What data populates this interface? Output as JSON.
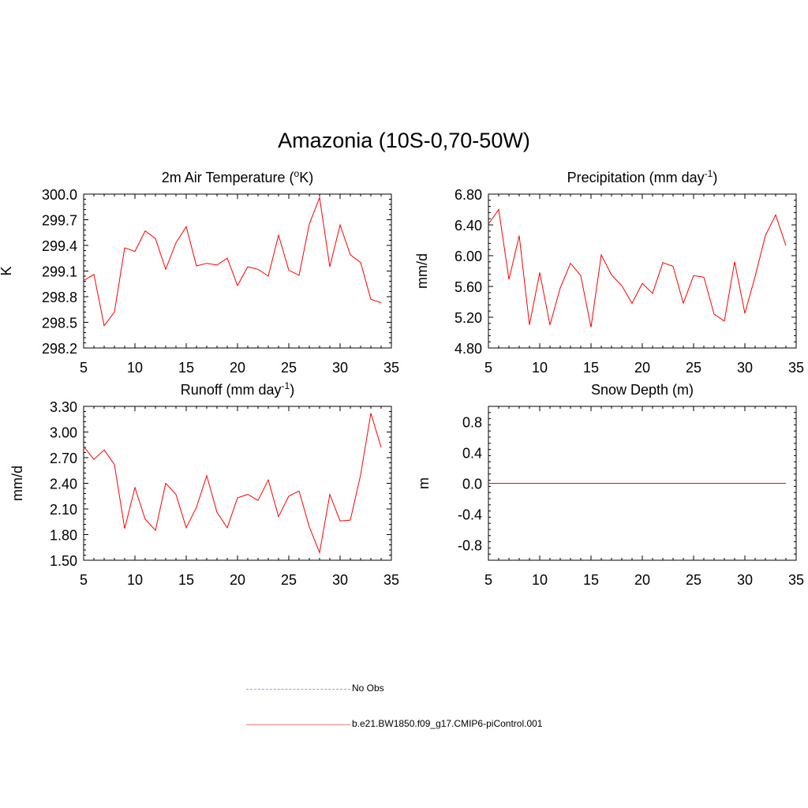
{
  "title": "Amazonia (10S-0,70-50W)",
  "colors": {
    "model": "#ff0000",
    "obs": "#9a9ae6",
    "axis": "#000000"
  },
  "legend": {
    "obs_label": "No Obs",
    "model_label": "b.e21.BW1850.f09_g17.CMIP6-piControl.001"
  },
  "chart_data": [
    {
      "id": "temp",
      "type": "line",
      "title": "2m Air Temperature (",
      "title_sup": "o",
      "title_tail": "K)",
      "ylabel": "K",
      "xlim": [
        5,
        35
      ],
      "ylim": [
        298.2,
        300.0
      ],
      "yticks": [
        "298.2",
        "298.5",
        "298.8",
        "299.1",
        "299.4",
        "299.7",
        "300.0"
      ],
      "xticks": [
        "5",
        "10",
        "15",
        "20",
        "25",
        "30",
        "35"
      ],
      "x": [
        5,
        6,
        7,
        8,
        9,
        10,
        11,
        12,
        13,
        14,
        15,
        16,
        17,
        18,
        19,
        20,
        21,
        22,
        23,
        24,
        25,
        26,
        27,
        28,
        29,
        30,
        31,
        32,
        33,
        34
      ],
      "values": [
        298.99,
        299.06,
        298.46,
        298.62,
        299.37,
        299.33,
        299.57,
        299.48,
        299.12,
        299.43,
        299.62,
        299.16,
        299.19,
        299.17,
        299.25,
        298.93,
        299.15,
        299.12,
        299.04,
        299.52,
        299.11,
        299.05,
        299.65,
        299.96,
        299.15,
        299.64,
        299.29,
        299.2,
        298.77,
        298.73
      ]
    },
    {
      "id": "precip",
      "type": "line",
      "title": "Precipitation (mm day",
      "title_sup": "-1",
      "title_tail": ")",
      "ylabel": "mm/d",
      "xlim": [
        5,
        35
      ],
      "ylim": [
        4.8,
        6.8
      ],
      "yticks": [
        "4.80",
        "5.20",
        "5.60",
        "6.00",
        "6.40",
        "6.80"
      ],
      "xticks": [
        "5",
        "10",
        "15",
        "20",
        "25",
        "30",
        "35"
      ],
      "x": [
        5,
        6,
        7,
        8,
        9,
        10,
        11,
        12,
        13,
        14,
        15,
        16,
        17,
        18,
        19,
        20,
        21,
        22,
        23,
        24,
        25,
        26,
        27,
        28,
        29,
        30,
        31,
        32,
        33,
        34
      ],
      "values": [
        6.41,
        6.6,
        5.69,
        6.26,
        5.1,
        5.78,
        5.1,
        5.58,
        5.9,
        5.74,
        5.07,
        6.01,
        5.75,
        5.61,
        5.38,
        5.64,
        5.51,
        5.91,
        5.86,
        5.38,
        5.74,
        5.72,
        5.24,
        5.15,
        5.92,
        5.25,
        5.73,
        6.26,
        6.53,
        6.13
      ]
    },
    {
      "id": "runoff",
      "type": "line",
      "title": "Runoff (mm day",
      "title_sup": "-1",
      "title_tail": ")",
      "ylabel": "mm/d",
      "xlim": [
        5,
        35
      ],
      "ylim": [
        1.5,
        3.3
      ],
      "yticks": [
        "1.50",
        "1.80",
        "2.10",
        "2.40",
        "2.70",
        "3.00",
        "3.30"
      ],
      "xticks": [
        "5",
        "10",
        "15",
        "20",
        "25",
        "30",
        "35"
      ],
      "x": [
        5,
        6,
        7,
        8,
        9,
        10,
        11,
        12,
        13,
        14,
        15,
        16,
        17,
        18,
        19,
        20,
        21,
        22,
        23,
        24,
        25,
        26,
        27,
        28,
        29,
        30,
        31,
        32,
        33,
        34
      ],
      "values": [
        2.83,
        2.68,
        2.79,
        2.62,
        1.87,
        2.35,
        1.98,
        1.85,
        2.4,
        2.27,
        1.88,
        2.12,
        2.49,
        2.06,
        1.88,
        2.23,
        2.27,
        2.2,
        2.44,
        2.01,
        2.25,
        2.31,
        1.89,
        1.59,
        2.27,
        1.96,
        1.97,
        2.5,
        3.22,
        2.82
      ]
    },
    {
      "id": "snow",
      "type": "line",
      "title": "Snow Depth (m)",
      "title_sup": "",
      "title_tail": "",
      "ylabel": "m",
      "xlim": [
        5,
        35
      ],
      "ylim": [
        -1.0,
        1.0
      ],
      "yticks": [
        "-0.8",
        "-0.4",
        "0.0",
        "0.4",
        "0.8"
      ],
      "ytick_values": [
        -0.8,
        -0.4,
        0.0,
        0.4,
        0.8
      ],
      "xticks": [
        "5",
        "10",
        "15",
        "20",
        "25",
        "30",
        "35"
      ],
      "x": [
        5,
        6,
        7,
        8,
        9,
        10,
        11,
        12,
        13,
        14,
        15,
        16,
        17,
        18,
        19,
        20,
        21,
        22,
        23,
        24,
        25,
        26,
        27,
        28,
        29,
        30,
        31,
        32,
        33,
        34
      ],
      "values": [
        0,
        0,
        0,
        0,
        0,
        0,
        0,
        0,
        0,
        0,
        0,
        0,
        0,
        0,
        0,
        0,
        0,
        0,
        0,
        0,
        0,
        0,
        0,
        0,
        0,
        0,
        0,
        0,
        0,
        0
      ]
    }
  ]
}
